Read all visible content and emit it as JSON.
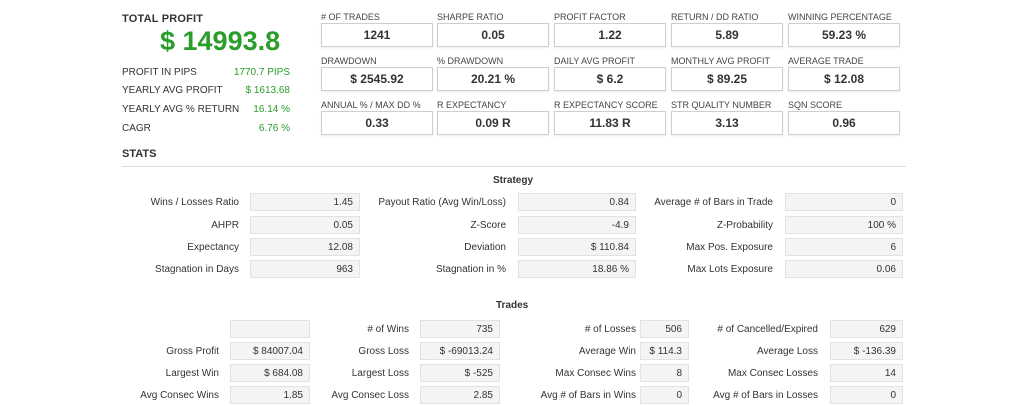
{
  "total_profit": {
    "label": "TOTAL PROFIT",
    "value": "$ 14993.8"
  },
  "profit_rows": [
    {
      "label": "PROFIT IN PIPS",
      "value": "1770.7 PIPS"
    },
    {
      "label": "YEARLY AVG PROFIT",
      "value": "$ 1613.68"
    },
    {
      "label": "YEARLY AVG % RETURN",
      "value": "16.14 %"
    },
    {
      "label": "CAGR",
      "value": "6.76 %"
    }
  ],
  "cards": [
    {
      "label": "# OF TRADES",
      "value": "1241"
    },
    {
      "label": "SHARPE RATIO",
      "value": "0.05"
    },
    {
      "label": "PROFIT FACTOR",
      "value": "1.22"
    },
    {
      "label": "RETURN / DD RATIO",
      "value": "5.89"
    },
    {
      "label": "WINNING PERCENTAGE",
      "value": "59.23 %"
    },
    {
      "label": "DRAWDOWN",
      "value": "$ 2545.92"
    },
    {
      "label": "% DRAWDOWN",
      "value": "20.21 %"
    },
    {
      "label": "DAILY AVG PROFIT",
      "value": "$ 6.2"
    },
    {
      "label": "MONTHLY AVG PROFIT",
      "value": "$ 89.25"
    },
    {
      "label": "AVERAGE TRADE",
      "value": "$ 12.08"
    },
    {
      "label": "ANNUAL % / MAX DD %",
      "value": "0.33"
    },
    {
      "label": "R EXPECTANCY",
      "value": "0.09 R"
    },
    {
      "label": "R EXPECTANCY SCORE",
      "value": "11.83 R"
    },
    {
      "label": "STR QUALITY NUMBER",
      "value": "3.13"
    },
    {
      "label": "SQN SCORE",
      "value": "0.96"
    }
  ],
  "stats_title": "STATS",
  "strategy": {
    "title": "Strategy",
    "rows": [
      [
        {
          "label": "Wins / Losses Ratio",
          "value": "1.45"
        },
        {
          "label": "Payout Ratio (Avg Win/Loss)",
          "value": "0.84"
        },
        {
          "label": "Average # of Bars in Trade",
          "value": "0"
        }
      ],
      [
        {
          "label": "AHPR",
          "value": "0.05"
        },
        {
          "label": "Z-Score",
          "value": "-4.9"
        },
        {
          "label": "Z-Probability",
          "value": "100 %"
        }
      ],
      [
        {
          "label": "Expectancy",
          "value": "12.08"
        },
        {
          "label": "Deviation",
          "value": "$ 110.84"
        },
        {
          "label": "Max Pos. Exposure",
          "value": "6"
        }
      ],
      [
        {
          "label": "Stagnation in Days",
          "value": "963"
        },
        {
          "label": "Stagnation in %",
          "value": "18.86 %"
        },
        {
          "label": "Max Lots Exposure",
          "value": "0.06"
        }
      ]
    ]
  },
  "trades": {
    "title": "Trades",
    "rows": [
      [
        {
          "label": "",
          "value": ""
        },
        {
          "label": "# of Wins",
          "value": "735"
        },
        {
          "label": "# of Losses",
          "value": "506"
        },
        {
          "label": "# of Cancelled/Expired",
          "value": "629"
        }
      ],
      [
        {
          "label": "Gross Profit",
          "value": "$ 84007.04"
        },
        {
          "label": "Gross Loss",
          "value": "$ -69013.24"
        },
        {
          "label": "Average Win",
          "value": "$ 114.3"
        },
        {
          "label": "Average Loss",
          "value": "$ -136.39"
        }
      ],
      [
        {
          "label": "Largest Win",
          "value": "$ 684.08"
        },
        {
          "label": "Largest Loss",
          "value": "$ -525"
        },
        {
          "label": "Max Consec Wins",
          "value": "8"
        },
        {
          "label": "Max Consec Losses",
          "value": "14"
        }
      ],
      [
        {
          "label": "Avg Consec Wins",
          "value": "1.85"
        },
        {
          "label": "Avg Consec Loss",
          "value": "2.85"
        },
        {
          "label": "Avg # of Bars in Wins",
          "value": "0"
        },
        {
          "label": "Avg # of Bars in Losses",
          "value": "0"
        }
      ]
    ]
  }
}
